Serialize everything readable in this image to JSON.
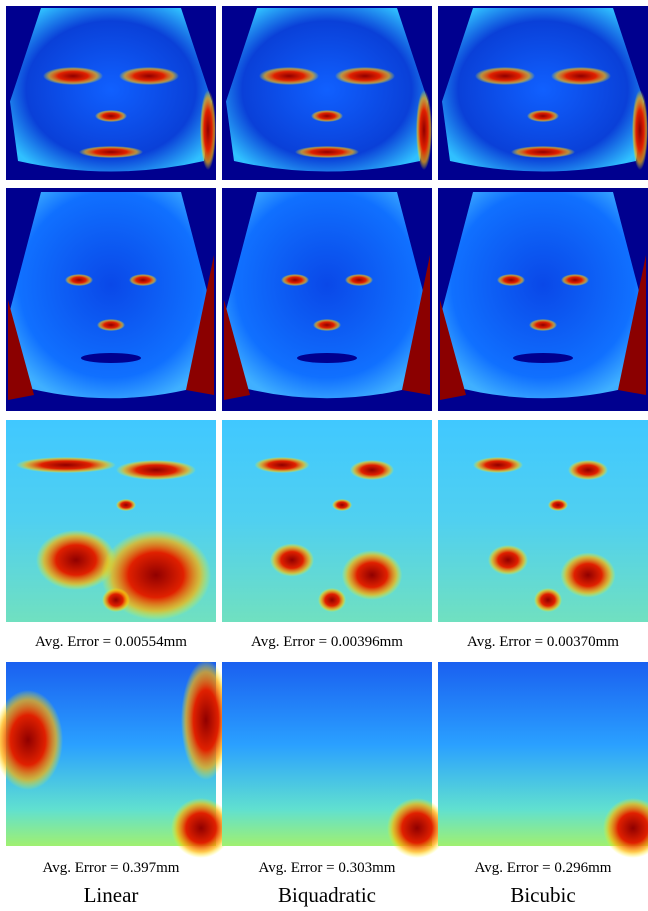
{
  "columns": [
    {
      "label": "Linear",
      "captions": [
        "Avg. Error = 0.00554mm",
        "Avg. Error = 0.397mm"
      ]
    },
    {
      "label": "Biquadratic",
      "captions": [
        "Avg. Error = 0.00396mm",
        "Avg. Error = 0.303mm"
      ]
    },
    {
      "label": "Bicubic",
      "captions": [
        "Avg. Error = 0.00370mm",
        "Avg. Error = 0.296mm"
      ]
    }
  ]
}
